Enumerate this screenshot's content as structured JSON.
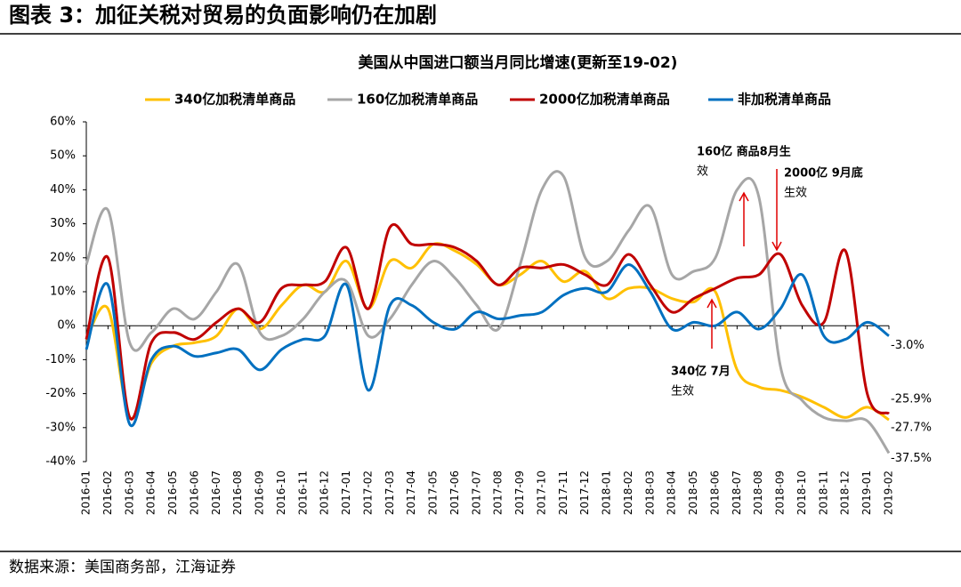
{
  "header": {
    "title": "图表 3：加征关税对贸易的负面影响仍在加剧"
  },
  "chart_data": {
    "type": "line",
    "title": "美国从中国进口额当月同比增速(更新至19-02)",
    "categories": [
      "2016-01",
      "2016-02",
      "2016-03",
      "2016-04",
      "2016-05",
      "2016-06",
      "2016-07",
      "2016-08",
      "2016-09",
      "2016-10",
      "2016-11",
      "2016-12",
      "2017-01",
      "2017-02",
      "2017-03",
      "2017-04",
      "2017-05",
      "2017-06",
      "2017-07",
      "2017-08",
      "2017-09",
      "2017-10",
      "2017-11",
      "2017-12",
      "2018-01",
      "2018-02",
      "2018-03",
      "2018-04",
      "2018-05",
      "2018-06",
      "2018-07",
      "2018-08",
      "2018-09",
      "2018-10",
      "2018-11",
      "2018-12",
      "2019-01",
      "2019-02"
    ],
    "series": [
      {
        "name": "340亿加税清单商品",
        "color": "#FFC000",
        "values": [
          -4,
          5,
          -27,
          -11,
          -6,
          -5,
          -3,
          5,
          -1,
          6,
          12,
          10,
          19,
          5,
          19,
          17,
          24,
          22,
          18,
          12,
          15,
          19,
          13,
          16,
          8,
          11,
          11,
          8,
          7,
          10,
          -13,
          -18,
          -19,
          -21,
          -24,
          -27,
          -24,
          -27.7
        ],
        "value_labels": [
          null,
          null,
          null,
          null,
          null,
          null,
          null,
          null,
          null,
          null,
          null,
          null,
          null,
          null,
          null,
          null,
          null,
          null,
          null,
          null,
          null,
          null,
          null,
          null,
          null,
          null,
          null,
          null,
          null,
          null,
          null,
          null,
          null,
          null,
          null,
          null,
          null,
          "-27.7%"
        ]
      },
      {
        "name": "160亿加税清单商品",
        "color": "#A6A6A6",
        "values": [
          18,
          34,
          -5,
          -2,
          5,
          2,
          10,
          18,
          -2,
          -3,
          2,
          10,
          13,
          -3,
          2,
          12,
          19,
          14,
          6,
          -1,
          18,
          40,
          44,
          20,
          19,
          28,
          35,
          15,
          16,
          20,
          40,
          38,
          -12,
          -22,
          -27,
          -28,
          -28,
          -37.5
        ],
        "value_labels": [
          null,
          null,
          null,
          null,
          null,
          null,
          null,
          null,
          null,
          null,
          null,
          null,
          null,
          null,
          null,
          null,
          null,
          null,
          null,
          null,
          null,
          null,
          null,
          null,
          null,
          null,
          null,
          null,
          null,
          null,
          null,
          null,
          null,
          null,
          null,
          null,
          null,
          "-37.5%"
        ]
      },
      {
        "name": "2000亿加税清单商品",
        "color": "#C00000",
        "values": [
          -4,
          20,
          -27,
          -5,
          -2,
          -4,
          1,
          5,
          1,
          11,
          12,
          13,
          23,
          5,
          29,
          24,
          24,
          23,
          19,
          12,
          17,
          17,
          18,
          15,
          12,
          21,
          12,
          4,
          8,
          11,
          14,
          15,
          21,
          6,
          1,
          22,
          -20,
          -25.9
        ],
        "value_labels": [
          null,
          null,
          null,
          null,
          null,
          null,
          null,
          null,
          null,
          null,
          null,
          null,
          null,
          null,
          null,
          null,
          null,
          null,
          null,
          null,
          null,
          null,
          null,
          null,
          null,
          null,
          null,
          null,
          null,
          null,
          null,
          null,
          null,
          null,
          null,
          null,
          null,
          "-25.9%"
        ]
      },
      {
        "name": "非加税清单商品",
        "color": "#0070C0",
        "values": [
          -7,
          12,
          -29,
          -10,
          -6,
          -9,
          -8,
          -7,
          -13,
          -7,
          -4,
          -3,
          12,
          -19,
          6,
          6,
          1,
          -1,
          4,
          2,
          3,
          4,
          9,
          11,
          10,
          18,
          10,
          -1,
          1,
          0,
          4,
          -1,
          5,
          15,
          -3,
          -4,
          1,
          -3.0
        ],
        "value_labels": [
          null,
          null,
          null,
          null,
          null,
          null,
          null,
          null,
          null,
          null,
          null,
          null,
          null,
          null,
          null,
          null,
          null,
          null,
          null,
          null,
          null,
          null,
          null,
          null,
          null,
          null,
          null,
          null,
          null,
          null,
          null,
          null,
          null,
          null,
          null,
          null,
          null,
          "-3.0%"
        ]
      }
    ],
    "ylim": [
      -40,
      60
    ],
    "yticks": [
      {
        "value": -40,
        "label": "-40%"
      },
      {
        "value": -30,
        "label": "-30%"
      },
      {
        "value": -20,
        "label": "-20%"
      },
      {
        "value": -10,
        "label": "-10%"
      },
      {
        "value": 0,
        "label": "0%"
      },
      {
        "value": 10,
        "label": "10%"
      },
      {
        "value": 20,
        "label": "20%"
      },
      {
        "value": 30,
        "label": "30%"
      },
      {
        "value": 40,
        "label": "40%"
      },
      {
        "value": 50,
        "label": "50%"
      },
      {
        "value": 60,
        "label": "60%"
      }
    ],
    "grid": false,
    "legend": "top",
    "annotations": [
      {
        "lines": [
          "160亿 商品8月生",
          "效"
        ]
      },
      {
        "lines": [
          "2000亿 9月底",
          "生效"
        ]
      },
      {
        "lines": [
          "340亿 7月",
          "生效"
        ]
      }
    ]
  },
  "footer": {
    "source": "数据来源：美国商务部，江海证券"
  }
}
